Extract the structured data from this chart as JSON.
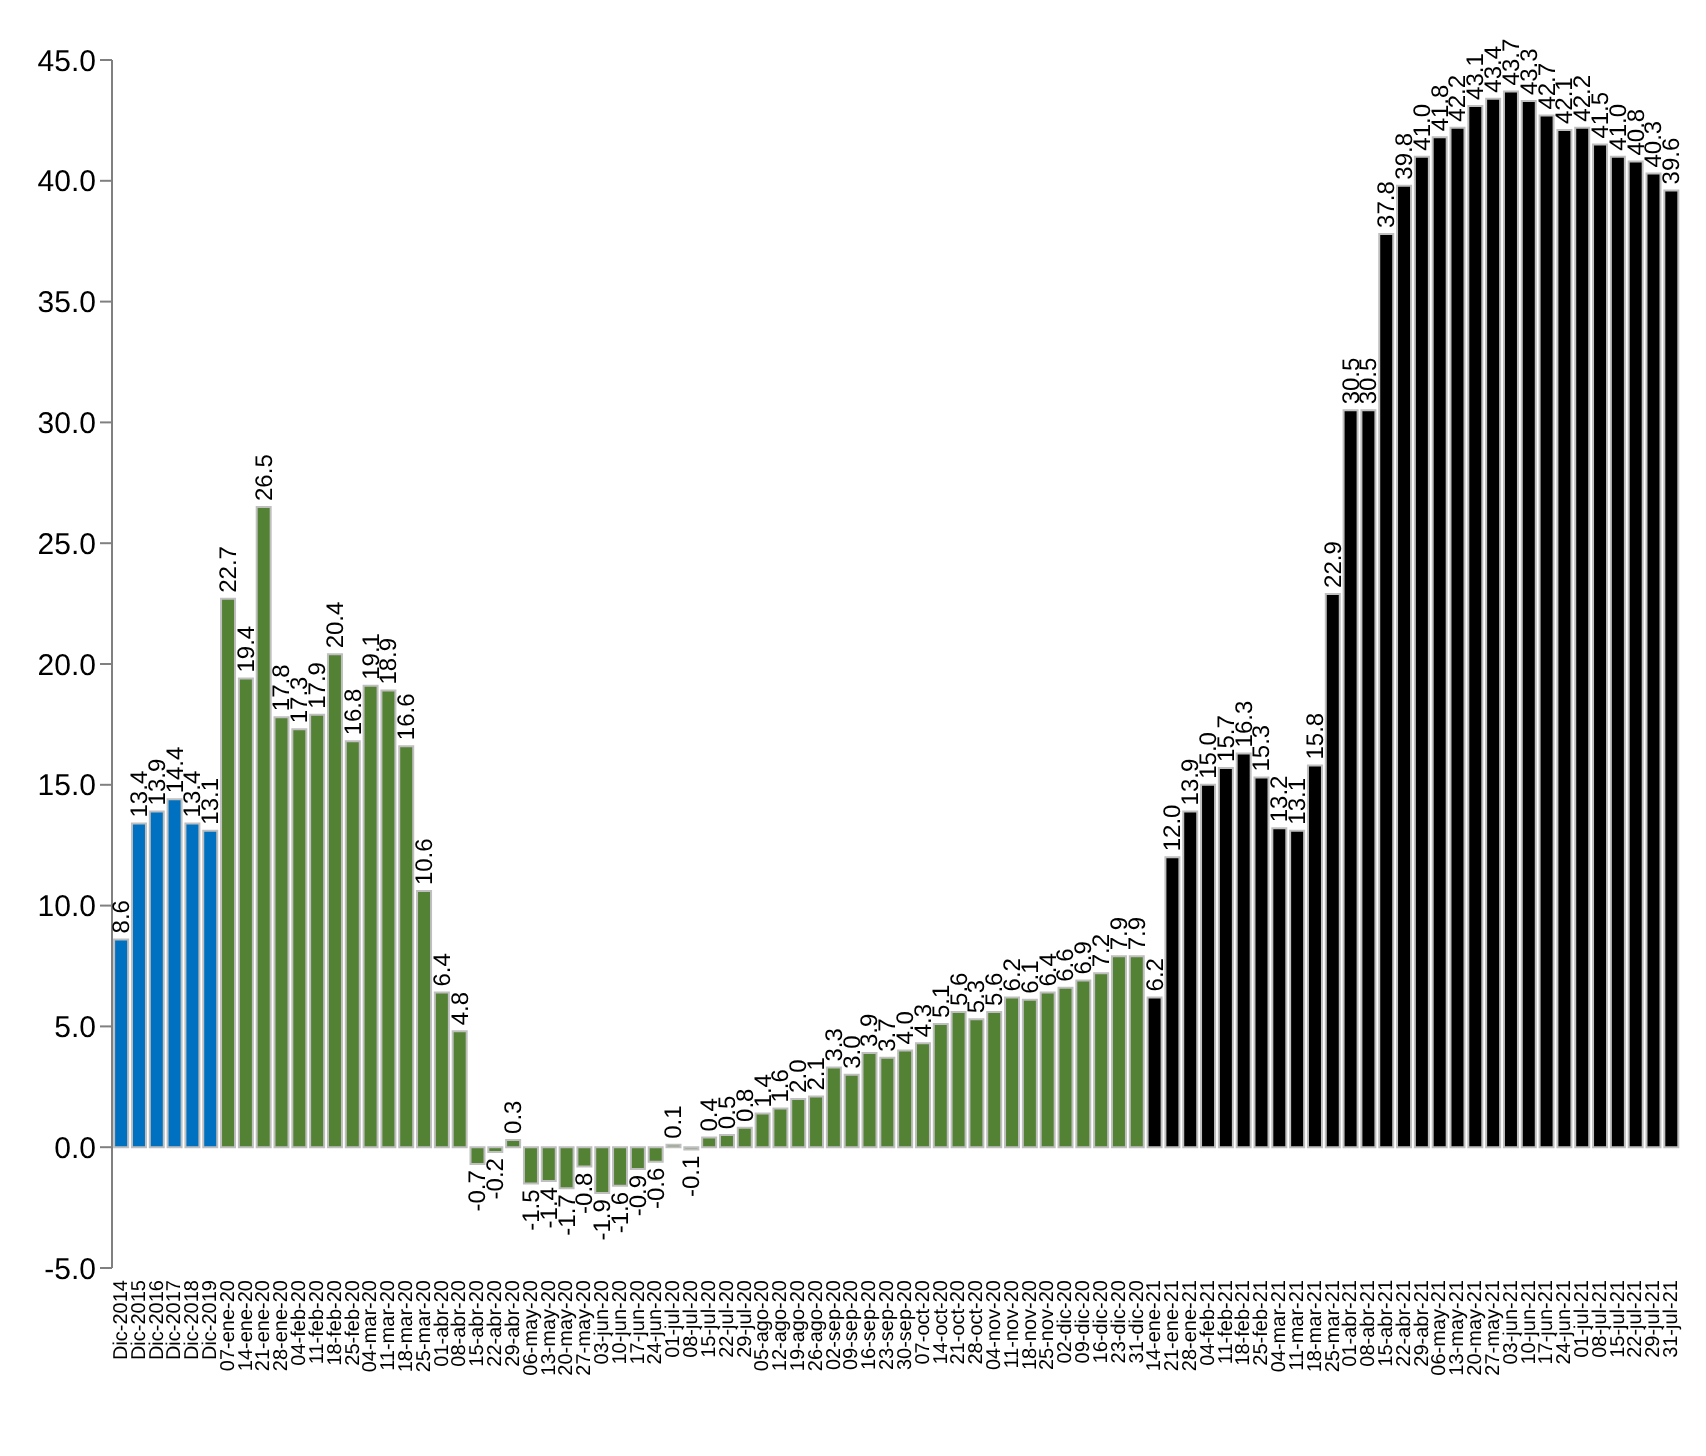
{
  "chart_data": {
    "type": "bar",
    "categories": [
      "Dic-2014",
      "Dic-2015",
      "Dic-2016",
      "Dic-2017",
      "Dic-2018",
      "Dic-2019",
      "07-ene-20",
      "14-ene-20",
      "21-ene-20",
      "28-ene-20",
      "04-feb-20",
      "11-feb-20",
      "18-feb-20",
      "25-feb-20",
      "04-mar-20",
      "11-mar-20",
      "18-mar-20",
      "25-mar-20",
      "01-abr-20",
      "08-abr-20",
      "15-abr-20",
      "22-abr-20",
      "29-abr-20",
      "06-may-20",
      "13-may-20",
      "20-may-20",
      "27-may-20",
      "03-jun-20",
      "10-jun-20",
      "17-jun-20",
      "24-jun-20",
      "01-jul-20",
      "08-jul-20",
      "15-jul-20",
      "22-jul-20",
      "29-jul-20",
      "05-ago-20",
      "12-ago-20",
      "19-ago-20",
      "26-ago-20",
      "02-sep-20",
      "09-sep-20",
      "16-sep-20",
      "23-sep-20",
      "30-sep-20",
      "07-oct-20",
      "14-oct-20",
      "21-oct-20",
      "28-oct-20",
      "04-nov-20",
      "11-nov-20",
      "18-nov-20",
      "25-nov-20",
      "02-dic-20",
      "09-dic-20",
      "16-dic-20",
      "23-dic-20",
      "31-dic-20",
      "14-ene-21",
      "21-ene-21",
      "28-ene-21",
      "04-feb-21",
      "11-feb-21",
      "18-feb-21",
      "25-feb-21",
      "04-mar-21",
      "11-mar-21",
      "18-mar-21",
      "25-mar-21",
      "01-abr-21",
      "08-abr-21",
      "15-abr-21",
      "22-abr-21",
      "29-abr-21",
      "06-may-21",
      "13-may-21",
      "20-may-21",
      "27-may-21",
      "03-jun-21",
      "10-jun-21",
      "17-jun-21",
      "24-jun-21",
      "01-jul-21",
      "08-jul-21",
      "15-jul-21",
      "22-jul-21",
      "29-jul-21",
      "31-jul-21"
    ],
    "values": [
      8.6,
      13.4,
      13.9,
      14.4,
      13.4,
      13.1,
      22.7,
      19.4,
      26.5,
      17.8,
      17.3,
      17.9,
      20.4,
      16.8,
      19.1,
      18.9,
      16.6,
      10.6,
      6.4,
      4.8,
      -0.7,
      -0.2,
      0.3,
      -1.5,
      -1.4,
      -1.7,
      -0.8,
      -1.9,
      -1.6,
      -0.9,
      -0.6,
      0.1,
      -0.1,
      0.4,
      0.5,
      0.8,
      1.4,
      1.6,
      2.0,
      2.1,
      3.3,
      3.0,
      3.9,
      3.7,
      4.0,
      4.3,
      5.1,
      5.6,
      5.3,
      5.6,
      6.2,
      6.1,
      6.4,
      6.6,
      6.9,
      7.2,
      7.9,
      7.9,
      6.2,
      12.0,
      13.9,
      15.0,
      15.7,
      16.3,
      15.3,
      13.2,
      13.1,
      15.8,
      22.9,
      30.5,
      30.5,
      37.8,
      39.8,
      41.0,
      41.8,
      42.2,
      43.1,
      43.4,
      43.7,
      43.3,
      42.7,
      42.1,
      42.2,
      41.5,
      41.0,
      40.8,
      40.3,
      39.6
    ],
    "value_labels": [
      "8.6",
      "13.4",
      "13.9",
      "14.4",
      "13.4",
      "13.1",
      "22.7",
      "19.4",
      "26.5",
      "17.8",
      "17.3",
      "17.9",
      "20.4",
      "16.8",
      "19.1",
      "18.9",
      "16.6",
      "10.6",
      "6.4",
      "4.8",
      "-0.7",
      "-0.2",
      "0.3",
      "-1.5",
      "-1.4",
      "-1.7",
      "-0.8",
      "-1.9",
      "-1.6",
      "-0.9",
      "-0.6",
      "0.1",
      "-0.1",
      "0.4",
      "0.5",
      "0.8",
      "1.4",
      "1.6",
      "2.0",
      "2.1",
      "3.3",
      "3.0",
      "3.9",
      "3.7",
      "4.0",
      "4.3",
      "5.1",
      "5.6",
      "5.3",
      "5.6",
      "6.2",
      "6.1",
      "6.4",
      "6.6",
      "6.9",
      "7.2",
      "7.9",
      "7.9",
      "6.2",
      "12.0",
      "13.9",
      "15.0",
      "15.7",
      "16.3",
      "15.3",
      "13.2",
      "13.1",
      "15.8",
      "22.9",
      "30.5",
      "30.5",
      "37.8",
      "39.8",
      "41.0",
      "41.8",
      "42.2",
      "43.1",
      "43.4",
      "43.7",
      "43.3",
      "42.7",
      "42.1",
      "42.2",
      "41.5",
      "41.0",
      "40.8",
      "40.3",
      "39.6"
    ],
    "colors": [
      "#0070c0",
      "#0070c0",
      "#0070c0",
      "#0070c0",
      "#0070c0",
      "#0070c0",
      "#548235",
      "#548235",
      "#548235",
      "#548235",
      "#548235",
      "#548235",
      "#548235",
      "#548235",
      "#548235",
      "#548235",
      "#548235",
      "#548235",
      "#548235",
      "#548235",
      "#548235",
      "#548235",
      "#548235",
      "#548235",
      "#548235",
      "#548235",
      "#548235",
      "#548235",
      "#548235",
      "#548235",
      "#548235",
      "#548235",
      "#548235",
      "#548235",
      "#548235",
      "#548235",
      "#548235",
      "#548235",
      "#548235",
      "#548235",
      "#548235",
      "#548235",
      "#548235",
      "#548235",
      "#548235",
      "#548235",
      "#548235",
      "#548235",
      "#548235",
      "#548235",
      "#548235",
      "#548235",
      "#548235",
      "#548235",
      "#548235",
      "#548235",
      "#548235",
      "#548235",
      "#000000",
      "#000000",
      "#000000",
      "#000000",
      "#000000",
      "#000000",
      "#000000",
      "#000000",
      "#000000",
      "#000000",
      "#000000",
      "#000000",
      "#000000",
      "#000000",
      "#000000",
      "#000000",
      "#000000",
      "#000000",
      "#000000",
      "#000000",
      "#000000",
      "#000000",
      "#000000",
      "#000000",
      "#000000",
      "#000000",
      "#000000",
      "#000000",
      "#000000",
      "#000000"
    ],
    "ylim": [
      -5,
      45
    ],
    "yticks": [
      {
        "value": -5,
        "label": "-5.0"
      },
      {
        "value": 0,
        "label": "0.0"
      },
      {
        "value": 5,
        "label": "5.0"
      },
      {
        "value": 10,
        "label": "10.0"
      },
      {
        "value": 15,
        "label": "15.0"
      },
      {
        "value": 20,
        "label": "20.0"
      },
      {
        "value": 25,
        "label": "25.0"
      },
      {
        "value": 30,
        "label": "30.0"
      },
      {
        "value": 35,
        "label": "35.0"
      },
      {
        "value": 40,
        "label": "40.0"
      },
      {
        "value": 45,
        "label": "45.0"
      }
    ],
    "grid": false
  }
}
